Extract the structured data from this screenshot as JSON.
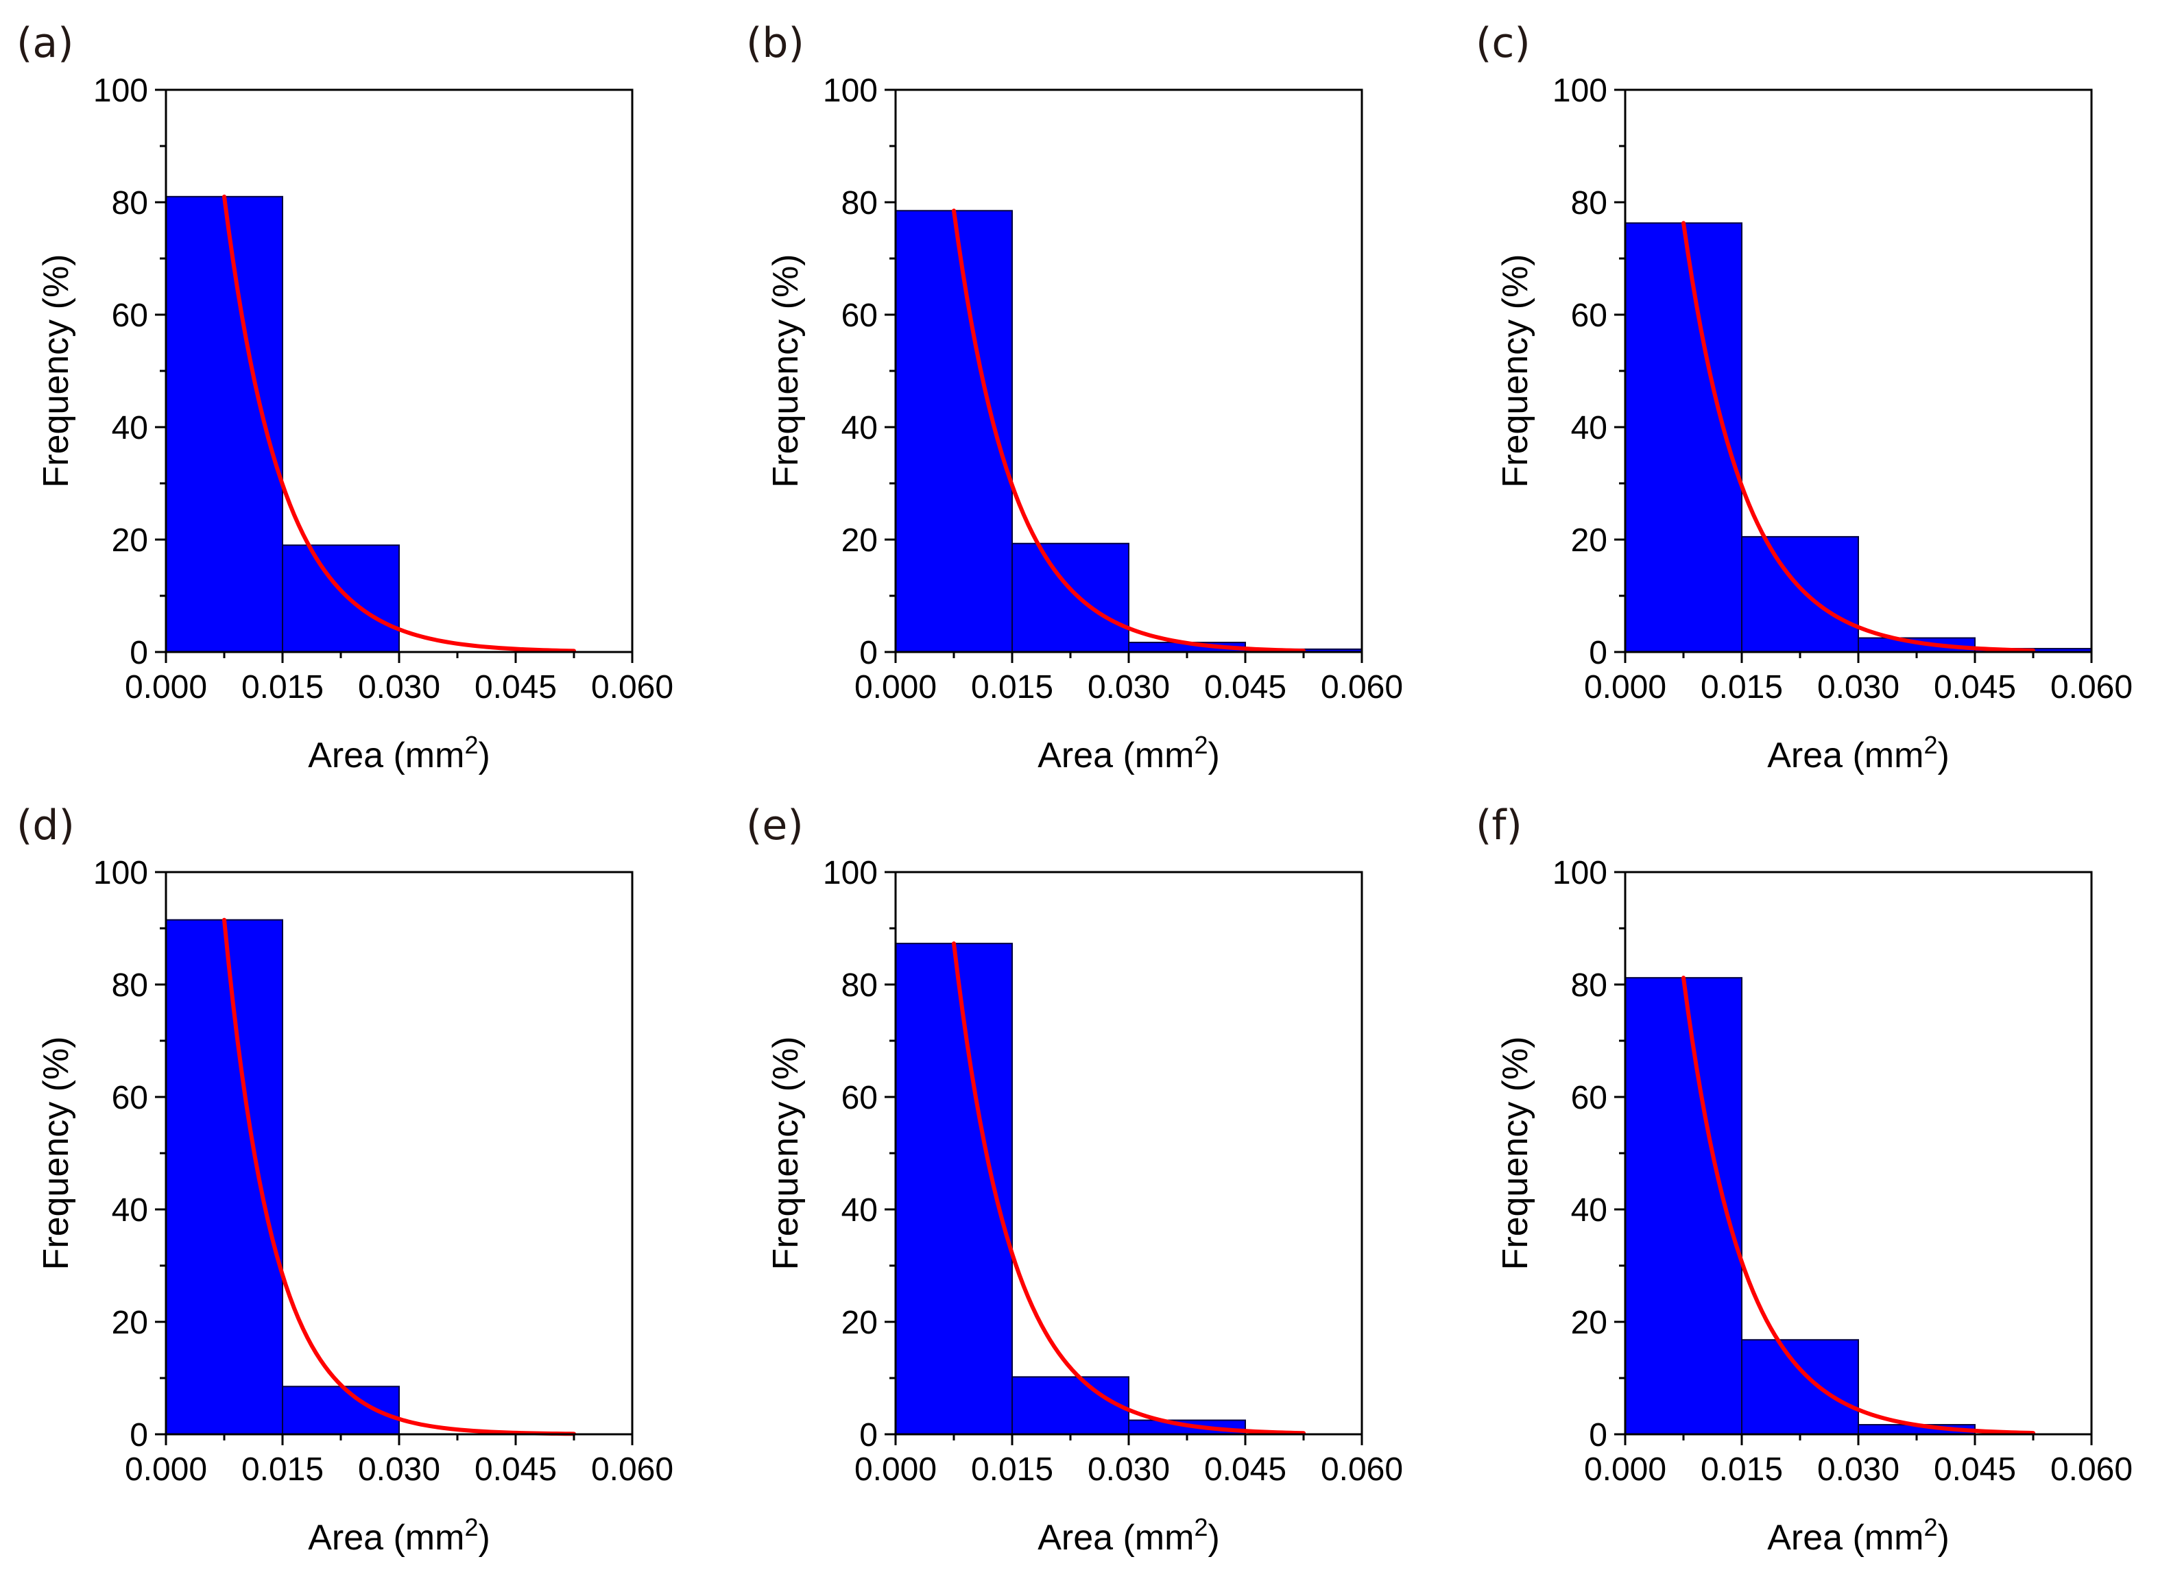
{
  "figure": {
    "bar_color": "#0000ff",
    "bar_edge_color": "#000040",
    "fit_color": "#ff0000",
    "axis_color": "#000000"
  },
  "chart_data": [
    {
      "panel_label": "(a)",
      "type": "bar",
      "title": "",
      "xlabel_main": "Area (mm",
      "xlabel_sup": "2",
      "xlabel_end": ")",
      "ylabel": "Frequency (%)",
      "xlim": [
        0,
        0.06
      ],
      "ylim": [
        0,
        100
      ],
      "xticks": [
        "0.000",
        "0.015",
        "0.030",
        "0.045",
        "0.060"
      ],
      "yticks": [
        "0",
        "20",
        "40",
        "60",
        "80",
        "100"
      ],
      "bins": [
        [
          0,
          0.015
        ],
        [
          0.015,
          0.03
        ],
        [
          0.03,
          0.045
        ],
        [
          0.045,
          0.06
        ]
      ],
      "values": [
        81,
        19,
        0,
        0
      ],
      "fit": {
        "type": "exponential",
        "x_start": 0.0075,
        "x_end": 0.0525,
        "y_start": 81,
        "scale": 0.0075
      }
    },
    {
      "panel_label": "(b)",
      "type": "bar",
      "title": "",
      "xlabel_main": "Area (mm",
      "xlabel_sup": "2",
      "xlabel_end": ")",
      "ylabel": "Frequency (%)",
      "xlim": [
        0,
        0.06
      ],
      "ylim": [
        0,
        100
      ],
      "xticks": [
        "0.000",
        "0.015",
        "0.030",
        "0.045",
        "0.060"
      ],
      "yticks": [
        "0",
        "20",
        "40",
        "60",
        "80",
        "100"
      ],
      "bins": [
        [
          0,
          0.015
        ],
        [
          0.015,
          0.03
        ],
        [
          0.03,
          0.045
        ],
        [
          0.045,
          0.06
        ]
      ],
      "values": [
        78.5,
        19.3,
        1.7,
        0.5
      ],
      "fit": {
        "type": "exponential",
        "x_start": 0.0075,
        "x_end": 0.0525,
        "y_start": 78.5,
        "scale": 0.0077
      }
    },
    {
      "panel_label": "(c)",
      "type": "bar",
      "title": "",
      "xlabel_main": "Area (mm",
      "xlabel_sup": "2",
      "xlabel_end": ")",
      "ylabel": "Frequency (%)",
      "xlim": [
        0,
        0.06
      ],
      "ylim": [
        0,
        100
      ],
      "xticks": [
        "0.000",
        "0.015",
        "0.030",
        "0.045",
        "0.060"
      ],
      "yticks": [
        "0",
        "20",
        "40",
        "60",
        "80",
        "100"
      ],
      "bins": [
        [
          0,
          0.015
        ],
        [
          0.015,
          0.03
        ],
        [
          0.03,
          0.045
        ],
        [
          0.045,
          0.06
        ]
      ],
      "values": [
        76.3,
        20.5,
        2.5,
        0.6
      ],
      "fit": {
        "type": "exponential",
        "x_start": 0.0075,
        "x_end": 0.0525,
        "y_start": 76.3,
        "scale": 0.0079
      }
    },
    {
      "panel_label": "(d)",
      "type": "bar",
      "title": "",
      "xlabel_main": "Area (mm",
      "xlabel_sup": "2",
      "xlabel_end": ")",
      "ylabel": "Frequency (%)",
      "xlim": [
        0,
        0.06
      ],
      "ylim": [
        0,
        100
      ],
      "xticks": [
        "0.000",
        "0.015",
        "0.030",
        "0.045",
        "0.060"
      ],
      "yticks": [
        "0",
        "20",
        "40",
        "60",
        "80",
        "100"
      ],
      "bins": [
        [
          0,
          0.015
        ],
        [
          0.015,
          0.03
        ],
        [
          0.03,
          0.045
        ],
        [
          0.045,
          0.06
        ]
      ],
      "values": [
        91.5,
        8.5,
        0,
        0
      ],
      "fit": {
        "type": "exponential",
        "x_start": 0.0075,
        "x_end": 0.0525,
        "y_start": 91.5,
        "scale": 0.0064
      }
    },
    {
      "panel_label": "(e)",
      "type": "bar",
      "title": "",
      "xlabel_main": "Area (mm",
      "xlabel_sup": "2",
      "xlabel_end": ")",
      "ylabel": "Frequency (%)",
      "xlim": [
        0,
        0.06
      ],
      "ylim": [
        0,
        100
      ],
      "xticks": [
        "0.000",
        "0.015",
        "0.030",
        "0.045",
        "0.060"
      ],
      "yticks": [
        "0",
        "20",
        "40",
        "60",
        "80",
        "100"
      ],
      "bins": [
        [
          0,
          0.015
        ],
        [
          0.015,
          0.03
        ],
        [
          0.03,
          0.045
        ],
        [
          0.045,
          0.06
        ]
      ],
      "values": [
        87.3,
        10.2,
        2.5,
        0
      ],
      "fit": {
        "type": "exponential",
        "x_start": 0.0075,
        "x_end": 0.0525,
        "y_start": 87.3,
        "scale": 0.0075
      }
    },
    {
      "panel_label": "(f)",
      "type": "bar",
      "title": "",
      "xlabel_main": "Area (mm",
      "xlabel_sup": "2",
      "xlabel_end": ")",
      "ylabel": "Frequency (%)",
      "xlim": [
        0,
        0.06
      ],
      "ylim": [
        0,
        100
      ],
      "xticks": [
        "0.000",
        "0.015",
        "0.030",
        "0.045",
        "0.060"
      ],
      "yticks": [
        "0",
        "20",
        "40",
        "60",
        "80",
        "100"
      ],
      "bins": [
        [
          0,
          0.015
        ],
        [
          0.015,
          0.03
        ],
        [
          0.03,
          0.045
        ],
        [
          0.045,
          0.06
        ]
      ],
      "values": [
        81.2,
        16.8,
        1.7,
        0
      ],
      "fit": {
        "type": "exponential",
        "x_start": 0.0075,
        "x_end": 0.0525,
        "y_start": 81.2,
        "scale": 0.0077
      }
    }
  ]
}
